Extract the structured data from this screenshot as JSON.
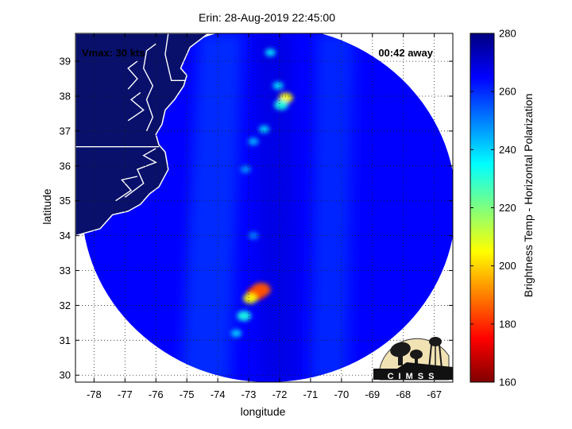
{
  "chart_data": {
    "type": "heatmap",
    "title": "Erin: 28-Aug-2019 22:45:00",
    "xlabel": "longitude",
    "ylabel": "latitude",
    "xlim": [
      -78.6,
      -66.4
    ],
    "ylim": [
      29.8,
      39.8
    ],
    "x_ticks": [
      -78,
      -77,
      -76,
      -75,
      -74,
      -73,
      -72,
      -71,
      -70,
      -69,
      -68,
      -67
    ],
    "y_ticks": [
      30,
      31,
      32,
      33,
      34,
      35,
      36,
      37,
      38,
      39
    ],
    "grid": true,
    "colorbar": {
      "label": "Brightness Temp - Horizontal Polarization",
      "range": [
        160,
        280
      ],
      "ticks": [
        160,
        180,
        200,
        220,
        240,
        260,
        280
      ],
      "colormap": "jet"
    },
    "annotations": {
      "vmax": "Vmax: 30 kts",
      "time_away": "00:42 away"
    },
    "swath": {
      "center_lon": -72.35,
      "center_lat": 34.9,
      "radius_lon": 6.05,
      "radius_lat": 5.1,
      "background_temp": 265
    },
    "features": [
      {
        "lon": -72.75,
        "lat": 32.35,
        "temp": 178
      },
      {
        "lon": -72.6,
        "lat": 32.45,
        "temp": 185
      },
      {
        "lon": -72.95,
        "lat": 32.2,
        "temp": 205
      },
      {
        "lon": -73.15,
        "lat": 31.7,
        "temp": 232
      },
      {
        "lon": -73.4,
        "lat": 31.2,
        "temp": 240
      },
      {
        "lon": -71.8,
        "lat": 37.95,
        "temp": 205
      },
      {
        "lon": -71.95,
        "lat": 37.75,
        "temp": 232
      },
      {
        "lon": -72.05,
        "lat": 38.3,
        "temp": 238
      },
      {
        "lon": -72.3,
        "lat": 39.25,
        "temp": 238
      },
      {
        "lon": -72.5,
        "lat": 37.05,
        "temp": 240
      },
      {
        "lon": -72.85,
        "lat": 36.7,
        "temp": 244
      },
      {
        "lon": -73.1,
        "lat": 35.9,
        "temp": 248
      },
      {
        "lon": -72.85,
        "lat": 34.0,
        "temp": 250
      }
    ],
    "land_color": "#08106b",
    "coast_color": "#ffffff",
    "logo": "CIMSS"
  }
}
